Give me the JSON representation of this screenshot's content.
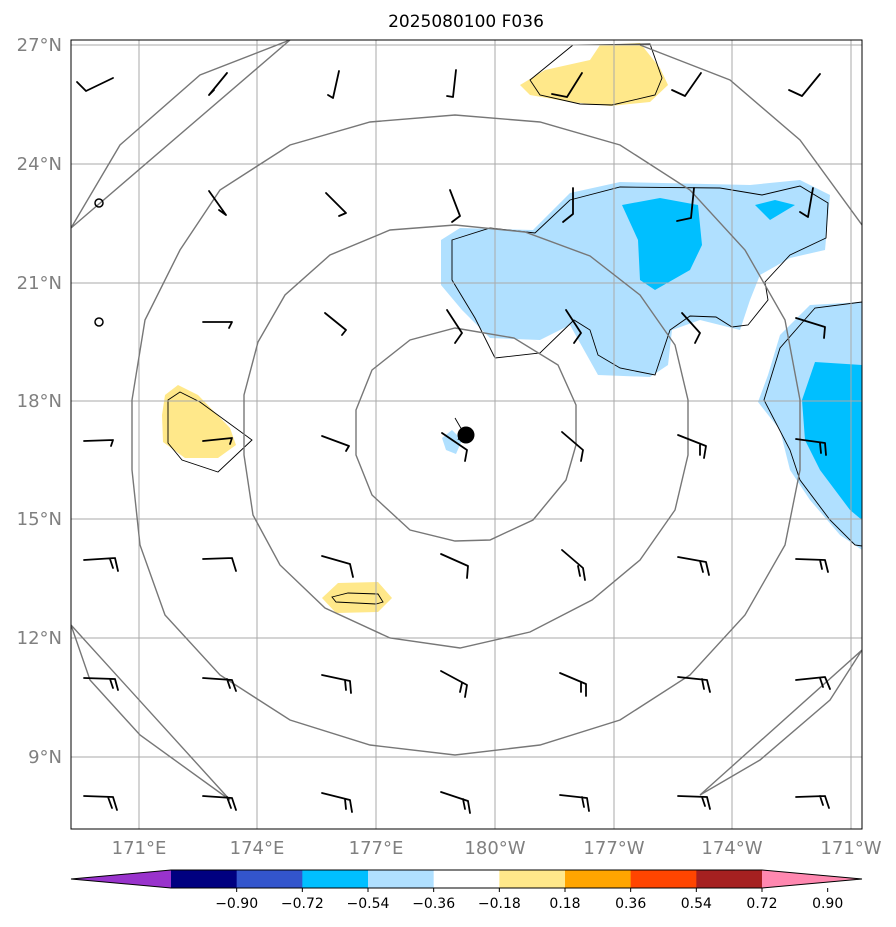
{
  "title": "2025080100 F036",
  "lat_labels": [
    "27°N",
    "24°N",
    "21°N",
    "18°N",
    "15°N",
    "12°N",
    "9°N"
  ],
  "lon_labels": [
    "171°E",
    "174°E",
    "177°E",
    "180°W",
    "177°W",
    "174°W",
    "171°W"
  ],
  "colorbar": {
    "ticks": [
      "−0.90",
      "−0.72",
      "−0.54",
      "−0.36",
      "−0.18",
      "0.18",
      "0.36",
      "0.54",
      "0.72",
      "0.90"
    ],
    "colors": [
      "#9933cc",
      "#000080",
      "#3355cc",
      "#00bfff",
      "#b0e0ff",
      "#ffffff",
      "#ffe88a",
      "#ffa500",
      "#ff4500",
      "#a52020",
      "#ff88b0"
    ]
  },
  "storm_center": {
    "lat": 17.1,
    "lon": 179.7
  },
  "range_rings_deg": [
    2,
    4.5,
    7.5,
    10.5
  ]
}
